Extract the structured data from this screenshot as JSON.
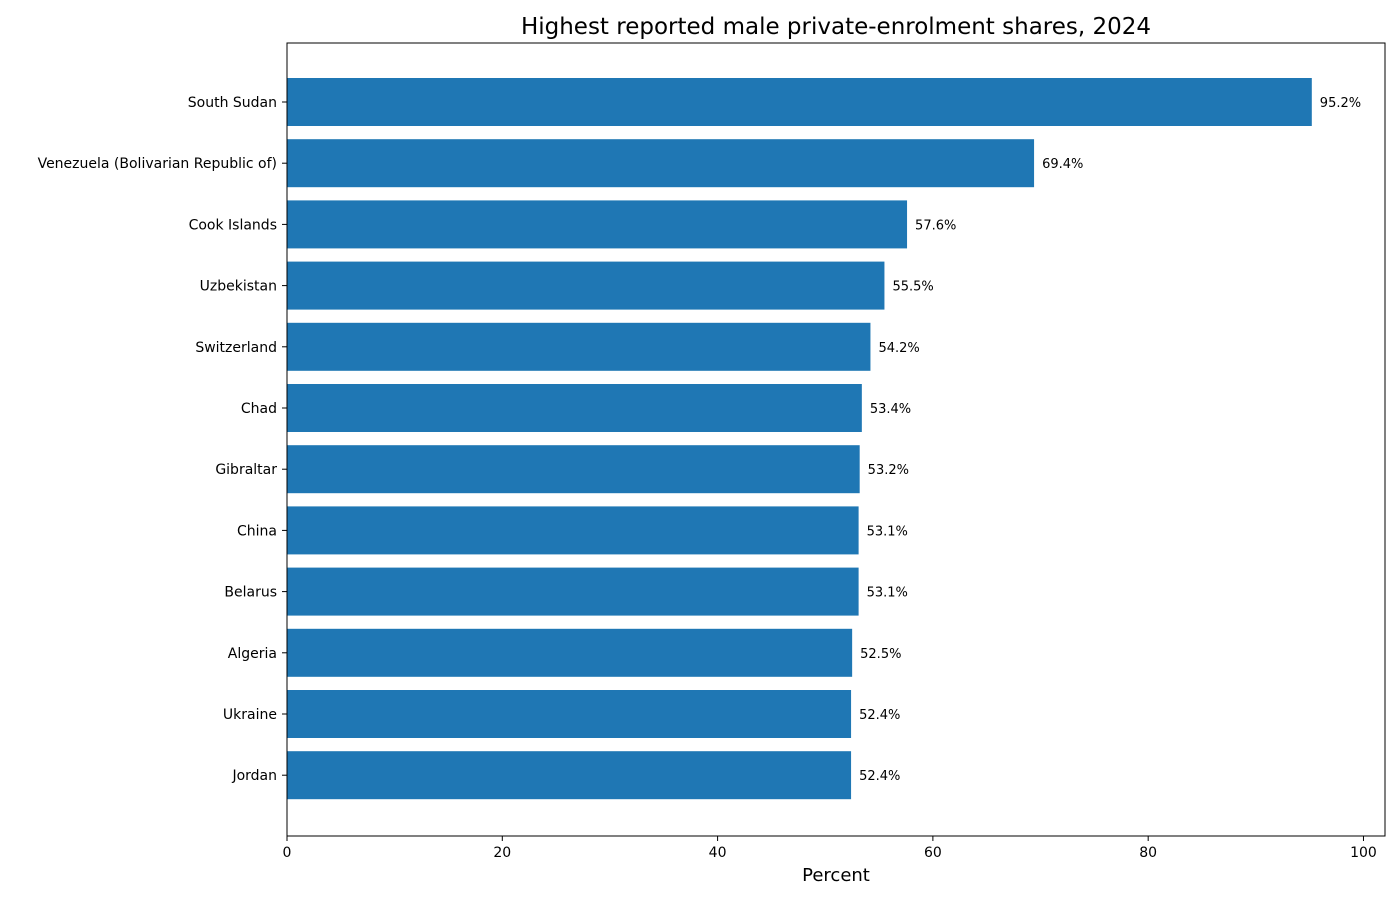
{
  "chart_data": {
    "type": "bar",
    "orientation": "horizontal",
    "title": "Highest reported male private-enrolment shares, 2024",
    "xlabel": "Percent",
    "ylabel": "",
    "xlim": [
      0,
      102
    ],
    "xticks": [
      0,
      20,
      40,
      60,
      80,
      100
    ],
    "grid": false,
    "bar_color": "#1f77b4",
    "value_suffix": "%",
    "categories": [
      "South Sudan",
      "Venezuela (Bolivarian Republic of)",
      "Cook Islands",
      "Uzbekistan",
      "Switzerland",
      "Chad",
      "Gibraltar",
      "China",
      "Belarus",
      "Algeria",
      "Ukraine",
      "Jordan"
    ],
    "values": [
      95.2,
      69.4,
      57.6,
      55.5,
      54.2,
      53.4,
      53.2,
      53.1,
      53.1,
      52.5,
      52.4,
      52.4
    ],
    "data_labels": [
      "95.2%",
      "69.4%",
      "57.6%",
      "55.5%",
      "54.2%",
      "53.4%",
      "53.2%",
      "53.1%",
      "53.1%",
      "52.5%",
      "52.4%",
      "52.4%"
    ]
  }
}
